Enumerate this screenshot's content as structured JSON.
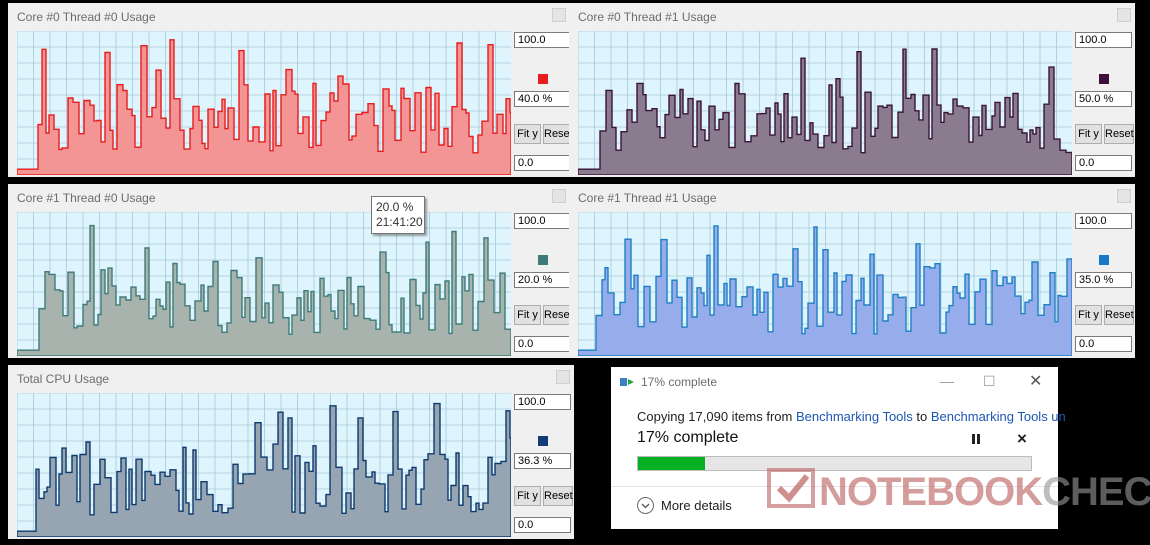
{
  "panels": [
    {
      "title": "Core #0 Thread #0 Usage",
      "max": "100.0",
      "current": "40.0 %",
      "min": "0.0",
      "fit_label": "Fit y",
      "reset_label": "Reset",
      "line_color": "#e81c1c",
      "fill_color": "#f39595",
      "swatch_color": "#e81c1c"
    },
    {
      "title": "Core #0 Thread #1 Usage",
      "max": "100.0",
      "current": "50.0 %",
      "min": "0.0",
      "fit_label": "Fit y",
      "reset_label": "Reset",
      "line_color": "#3a1438",
      "fill_color": "#8b7b8e",
      "swatch_color": "#3d0f3d"
    },
    {
      "title": "Core #1 Thread #0 Usage",
      "max": "100.0",
      "current": "20.0 %",
      "min": "0.0",
      "fit_label": "Fit y",
      "reset_label": "Reset",
      "line_color": "#3e7b78",
      "fill_color": "#a8b3ad",
      "swatch_color": "#3e7b78"
    },
    {
      "title": "Core #1 Thread #1 Usage",
      "max": "100.0",
      "current": "35.0 %",
      "min": "0.0",
      "fit_label": "Fit y",
      "reset_label": "Reset",
      "line_color": "#1e7fc4",
      "fill_color": "#96aceb",
      "swatch_color": "#1477c8"
    },
    {
      "title": "Total CPU Usage",
      "max": "100.0",
      "current": "36.3 %",
      "min": "0.0",
      "fit_label": "Fit y",
      "reset_label": "Reset",
      "line_color": "#0d3a6e",
      "fill_color": "#97a4b1",
      "swatch_color": "#123c78"
    }
  ],
  "tooltip": {
    "value": "20.0 %",
    "time": "21:41:20"
  },
  "copy_dialog": {
    "title": "17% complete",
    "line_prefix": "Copying 17,090 items from ",
    "source": "Benchmarking Tools",
    "line_mid": " to ",
    "destination": "Benchmarking Tools un",
    "status": "17% complete",
    "progress": 0.17,
    "more_details": "More details",
    "progress_color": "#06b025"
  },
  "watermark": {
    "part1": "NOTEBOOK",
    "part2": "CHECK"
  },
  "graph_style": {
    "background": "#dff5fd",
    "grid_color": "#a8c8d8"
  }
}
